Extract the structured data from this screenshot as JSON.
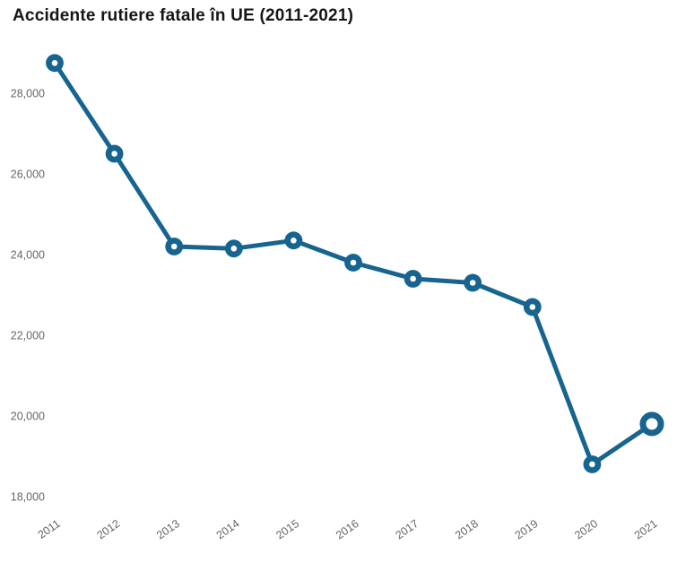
{
  "page": {
    "background": "#ffffff"
  },
  "chart_data": {
    "type": "line",
    "title": "Accidente rutiere fatale în UE (2011-2021)",
    "categories": [
      "2011",
      "2012",
      "2013",
      "2014",
      "2015",
      "2016",
      "2017",
      "2018",
      "2019",
      "2020",
      "2021"
    ],
    "series": [
      {
        "name": "Accidente rutiere fatale în UE",
        "values": [
          28750,
          26500,
          24200,
          24150,
          24350,
          23800,
          23400,
          23300,
          22700,
          18800,
          19800
        ]
      }
    ],
    "xlabel": "",
    "ylabel": "",
    "ylim": [
      18000,
      29000
    ],
    "yticks": [
      18000,
      20000,
      22000,
      24000,
      26000,
      28000
    ],
    "ytick_labels": [
      "18,000",
      "20,000",
      "22,000",
      "24,000",
      "26,000",
      "28,000"
    ],
    "grid": false,
    "legend": false,
    "x_labels_rotated_degrees": -35,
    "line_color": "#16648F",
    "marker_style": "open-circle",
    "marker_fill": "#ffffff",
    "emphasized_last_point": true,
    "axis_label_color": "#666666",
    "title_color": "#161616"
  }
}
